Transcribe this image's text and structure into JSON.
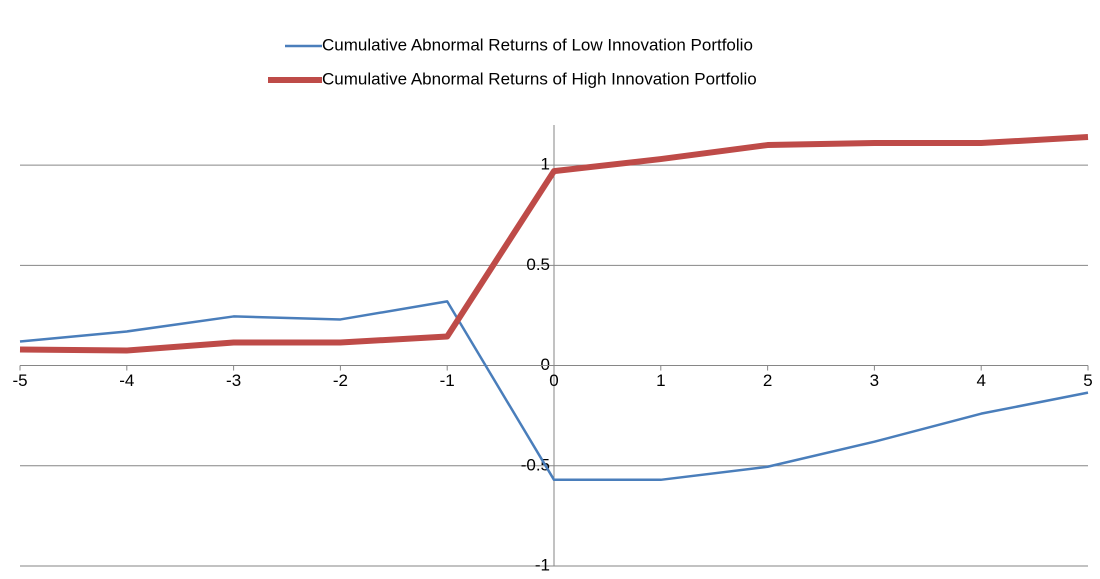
{
  "chart_data": {
    "type": "line",
    "x": [
      -5,
      -4,
      -3,
      -2,
      -1,
      0,
      1,
      2,
      3,
      4,
      5
    ],
    "series": [
      {
        "name": "Cumulative Abnormal Returns of Low Innovation Portfolio",
        "color": "#4a7ebb",
        "width": 2.5,
        "values": [
          0.12,
          0.17,
          0.245,
          0.23,
          0.32,
          -0.57,
          -0.57,
          -0.505,
          -0.38,
          -0.24,
          -0.135
        ]
      },
      {
        "name": "Cumulative Abnormal Returns of High Innovation Portfolio",
        "color": "#be4b48",
        "width": 6,
        "values": [
          0.08,
          0.075,
          0.115,
          0.115,
          0.145,
          0.97,
          1.03,
          1.1,
          1.11,
          1.11,
          1.14
        ]
      }
    ],
    "xlim": [
      -5,
      5
    ],
    "xticks": [
      -5,
      -4,
      -3,
      -2,
      -1,
      0,
      1,
      2,
      3,
      4,
      5
    ],
    "ylim": [
      -1,
      1.2
    ],
    "yticks": [
      -1,
      -0.5,
      0,
      0.5,
      1
    ],
    "grid": true,
    "legend": "top"
  }
}
